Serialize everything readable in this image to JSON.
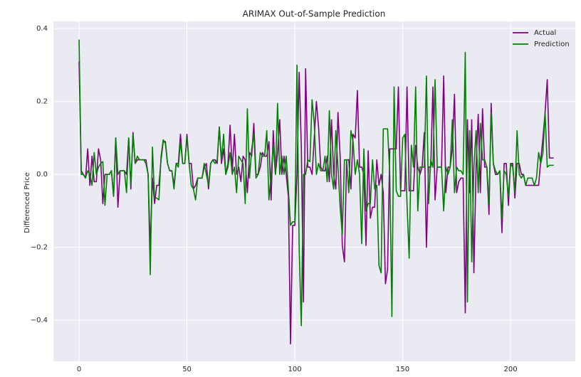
{
  "chart_data": {
    "type": "line",
    "title": "ARIMAX Out-of-Sample Prediction",
    "ylabel": "Differenced Price",
    "x": [
      0,
      1,
      2,
      3,
      4,
      5,
      6,
      7,
      8,
      9,
      10,
      11,
      12,
      13,
      14,
      15,
      16,
      17,
      18,
      19,
      20,
      21,
      22,
      23,
      24,
      25,
      26,
      27,
      28,
      29,
      30,
      31,
      32,
      33,
      34,
      35,
      36,
      37,
      38,
      39,
      40,
      41,
      42,
      43,
      44,
      45,
      46,
      47,
      48,
      49,
      50,
      51,
      52,
      53,
      54,
      55,
      56,
      57,
      58,
      59,
      60,
      61,
      62,
      63,
      64,
      65,
      66,
      67,
      68,
      69,
      70,
      71,
      72,
      73,
      74,
      75,
      76,
      77,
      78,
      79,
      80,
      81,
      82,
      83,
      84,
      85,
      86,
      87,
      88,
      89,
      90,
      91,
      92,
      93,
      94,
      95,
      96,
      97,
      98,
      99,
      100,
      101,
      102,
      103,
      104,
      105,
      106,
      107,
      108,
      109,
      110,
      111,
      112,
      113,
      114,
      115,
      116,
      117,
      118,
      119,
      120,
      121,
      122,
      123,
      124,
      125,
      126,
      127,
      128,
      129,
      130,
      131,
      132,
      133,
      134,
      135,
      136,
      137,
      138,
      139,
      140,
      141,
      142,
      143,
      144,
      145,
      146,
      147,
      148,
      149,
      150,
      151,
      152,
      153,
      154,
      155,
      156,
      157,
      158,
      159,
      160,
      161,
      162,
      163,
      164,
      165,
      166,
      167,
      168,
      169,
      170,
      171,
      172,
      173,
      174,
      175,
      176,
      177,
      178,
      179,
      180,
      181,
      182,
      183,
      184,
      185,
      186,
      187,
      188,
      189,
      190,
      191,
      192,
      193,
      194,
      195,
      196,
      197,
      198,
      199,
      200,
      201,
      202,
      203,
      204,
      205,
      206,
      207,
      208,
      209,
      210,
      211,
      212,
      213,
      214,
      215,
      216,
      217,
      218,
      219,
      220
    ],
    "series": [
      {
        "name": "Actual",
        "color": "#800080",
        "values": [
          0.31,
          0.01,
          0.0,
          -0.01,
          0.07,
          -0.03,
          0.05,
          -0.02,
          -0.02,
          0.07,
          0.04,
          -0.08,
          0.0,
          0.0,
          0.0,
          0.01,
          -0.06,
          0.1,
          -0.09,
          0.01,
          0.01,
          0.01,
          0.0,
          0.1,
          -0.04,
          0.115,
          0.03,
          0.04,
          0.04,
          0.04,
          0.04,
          0.04,
          0.0,
          -0.2,
          -0.01,
          -0.08,
          -0.03,
          -0.03,
          0.04,
          0.09,
          0.09,
          0.03,
          0.01,
          0.01,
          -0.03,
          0.03,
          0.03,
          0.11,
          0.03,
          0.03,
          0.11,
          0.03,
          0.03,
          -0.04,
          -0.03,
          -0.01,
          -0.01,
          -0.01,
          0.02,
          0.03,
          -0.04,
          0.03,
          0.04,
          0.04,
          0.03,
          0.13,
          0.03,
          0.07,
          0.0,
          0.03,
          0.135,
          0.01,
          0.11,
          0.0,
          0.02,
          -0.02,
          0.05,
          0.04,
          -0.05,
          0.06,
          0.05,
          0.14,
          0.0,
          0.0,
          0.02,
          0.06,
          0.05,
          0.05,
          0.09,
          -0.07,
          0.12,
          0.0,
          0.06,
          0.15,
          0.0,
          0.05,
          0.0,
          -0.06,
          -0.465,
          -0.14,
          -0.14,
          0.0,
          0.28,
          0.08,
          -0.35,
          0.29,
          0.02,
          0.02,
          0.0,
          0.1,
          0.2,
          0.13,
          0.02,
          0.01,
          0.01,
          0.05,
          -0.02,
          0.15,
          0.0,
          -0.04,
          0.17,
          0.05,
          -0.195,
          -0.24,
          0.04,
          0.04,
          -0.04,
          0.11,
          0.1,
          0.23,
          0.02,
          0.02,
          0.0,
          -0.195,
          0.065,
          -0.12,
          -0.09,
          -0.09,
          0.04,
          -0.03,
          0.0,
          -0.05,
          -0.3,
          -0.26,
          0.07,
          0.07,
          0.07,
          0.07,
          0.24,
          -0.045,
          -0.045,
          -0.045,
          0.24,
          -0.045,
          -0.045,
          -0.045,
          0.08,
          0.02,
          0.0,
          0.02,
          0.115,
          -0.2,
          0.02,
          0.02,
          0.24,
          -0.07,
          0.02,
          0.02,
          0.02,
          0.27,
          -0.05,
          0.02,
          0.02,
          0.07,
          0.22,
          -0.05,
          -0.02,
          -0.01,
          -0.01,
          -0.38,
          0.15,
          -0.05,
          0.15,
          -0.27,
          0.02,
          0.165,
          -0.05,
          0.18,
          0.02,
          0.02,
          -0.11,
          0.195,
          0.03,
          0.0,
          0.0,
          0.01,
          -0.16,
          0.03,
          0.03,
          -0.085,
          0.03,
          0.03,
          -0.065,
          0.03,
          0.03,
          0.0,
          0.0,
          -0.03,
          -0.03,
          -0.03,
          -0.03,
          -0.03,
          -0.03,
          -0.03,
          0.04,
          0.1,
          0.17,
          0.26,
          0.045,
          0.045,
          0.045
        ]
      },
      {
        "name": "Prediction",
        "color": "#008000",
        "values": [
          0.37,
          0.0,
          0.0,
          -0.01,
          0.01,
          0.0,
          -0.03,
          0.06,
          0.0,
          0.02,
          0.03,
          0.035,
          -0.085,
          0.0,
          0.0,
          0.01,
          -0.06,
          0.1,
          0.0,
          0.01,
          0.01,
          0.01,
          -0.05,
          0.1,
          -0.03,
          0.11,
          0.03,
          0.05,
          0.04,
          0.04,
          0.04,
          0.03,
          0.0,
          -0.275,
          0.075,
          -0.065,
          -0.065,
          -0.07,
          0.05,
          0.095,
          0.085,
          0.03,
          0.01,
          0.01,
          -0.04,
          0.03,
          0.02,
          0.09,
          0.03,
          0.03,
          0.1,
          0.03,
          -0.03,
          -0.04,
          -0.07,
          -0.01,
          -0.01,
          -0.01,
          0.03,
          0.0,
          -0.03,
          0.03,
          0.04,
          0.03,
          0.04,
          0.13,
          0.04,
          0.11,
          0.0,
          0.02,
          0.06,
          0.0,
          0.02,
          -0.05,
          0.05,
          0.04,
          0.03,
          -0.08,
          0.18,
          -0.01,
          0.07,
          0.11,
          -0.01,
          0.0,
          0.06,
          0.05,
          0.05,
          0.12,
          -0.07,
          0.0,
          0.08,
          0.0,
          0.195,
          0.0,
          0.05,
          0.0,
          0.05,
          -0.04,
          -0.14,
          -0.13,
          -0.13,
          0.3,
          -0.2,
          -0.415,
          0.0,
          0.0,
          0.04,
          0.035,
          0.205,
          0.14,
          0.0,
          0.03,
          0.01,
          0.01,
          0.05,
          -0.02,
          0.175,
          0.0,
          -0.04,
          0.12,
          0.02,
          -0.09,
          -0.165,
          0.04,
          0.04,
          -0.05,
          0.12,
          0.09,
          0.0,
          0.04,
          0.0,
          -0.19,
          0.07,
          -0.1,
          -0.08,
          -0.08,
          0.04,
          -0.04,
          -0.03,
          -0.25,
          -0.27,
          0.125,
          0.125,
          0.125,
          0.0,
          -0.39,
          0.24,
          -0.045,
          -0.06,
          -0.06,
          0.1,
          0.11,
          -0.08,
          -0.23,
          0.08,
          0.02,
          0.24,
          -0.1,
          0.02,
          0.02,
          0.02,
          0.27,
          -0.08,
          0.04,
          0.02,
          0.26,
          0.02,
          0.02,
          0.02,
          -0.1,
          0.02,
          0.0,
          0.02,
          0.15,
          -0.05,
          0.02,
          0.01,
          0.01,
          0.0,
          0.335,
          -0.35,
          0.12,
          -0.24,
          0.02,
          0.12,
          -0.05,
          0.14,
          0.04,
          0.04,
          0.02,
          -0.08,
          0.17,
          0.03,
          0.01,
          0.0,
          0.01,
          -0.12,
          0.01,
          0.0,
          -0.06,
          0.03,
          0.02,
          -0.05,
          0.12,
          0.0,
          -0.01,
          0.0,
          -0.03,
          -0.01,
          -0.01,
          -0.01,
          -0.03,
          -0.01,
          0.06,
          0.03,
          0.06,
          0.17,
          0.02,
          0.025,
          0.025,
          0.025
        ]
      }
    ],
    "xlim": [
      -11.9,
      230
    ],
    "ylim": [
      -0.513,
      0.42
    ],
    "xticks": [
      0,
      50,
      100,
      150,
      200
    ],
    "yticks": [
      {
        "value": -0.4,
        "label": "−0.4"
      },
      {
        "value": -0.2,
        "label": "−0.2"
      },
      {
        "value": 0,
        "label": "0.0"
      },
      0.2,
      0.4
    ],
    "grid": true,
    "legend": "upper right"
  }
}
